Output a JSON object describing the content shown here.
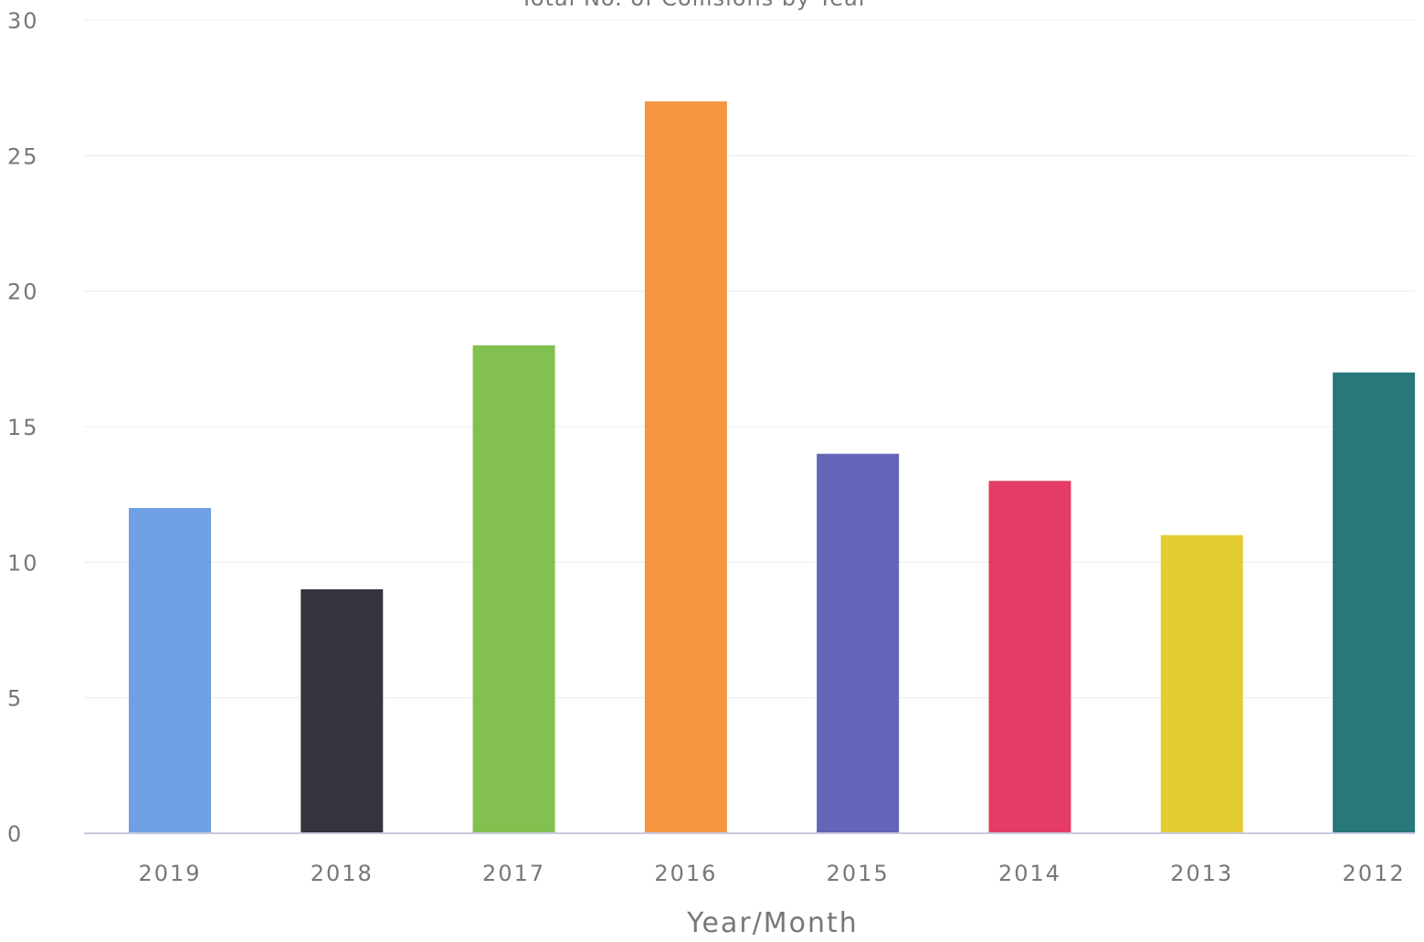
{
  "chart_data": {
    "type": "bar",
    "title": "Total No. of Collisions by Year",
    "xlabel": "Year/Month",
    "ylabel": "",
    "categories": [
      "2019",
      "2018",
      "2017",
      "2016",
      "2015",
      "2014",
      "2013",
      "2012"
    ],
    "values": [
      12,
      9,
      18,
      27,
      14,
      13,
      11,
      17
    ],
    "colors": [
      "#6fa0e4",
      "#34343c",
      "#82c050",
      "#f59640",
      "#6464b8",
      "#e43c64",
      "#e4cc34",
      "#26787a"
    ],
    "ylim": [
      0,
      30
    ],
    "yticks": [
      "0",
      "5",
      "10",
      "15",
      "20",
      "25",
      "30"
    ],
    "grid": true,
    "legend": "none"
  }
}
